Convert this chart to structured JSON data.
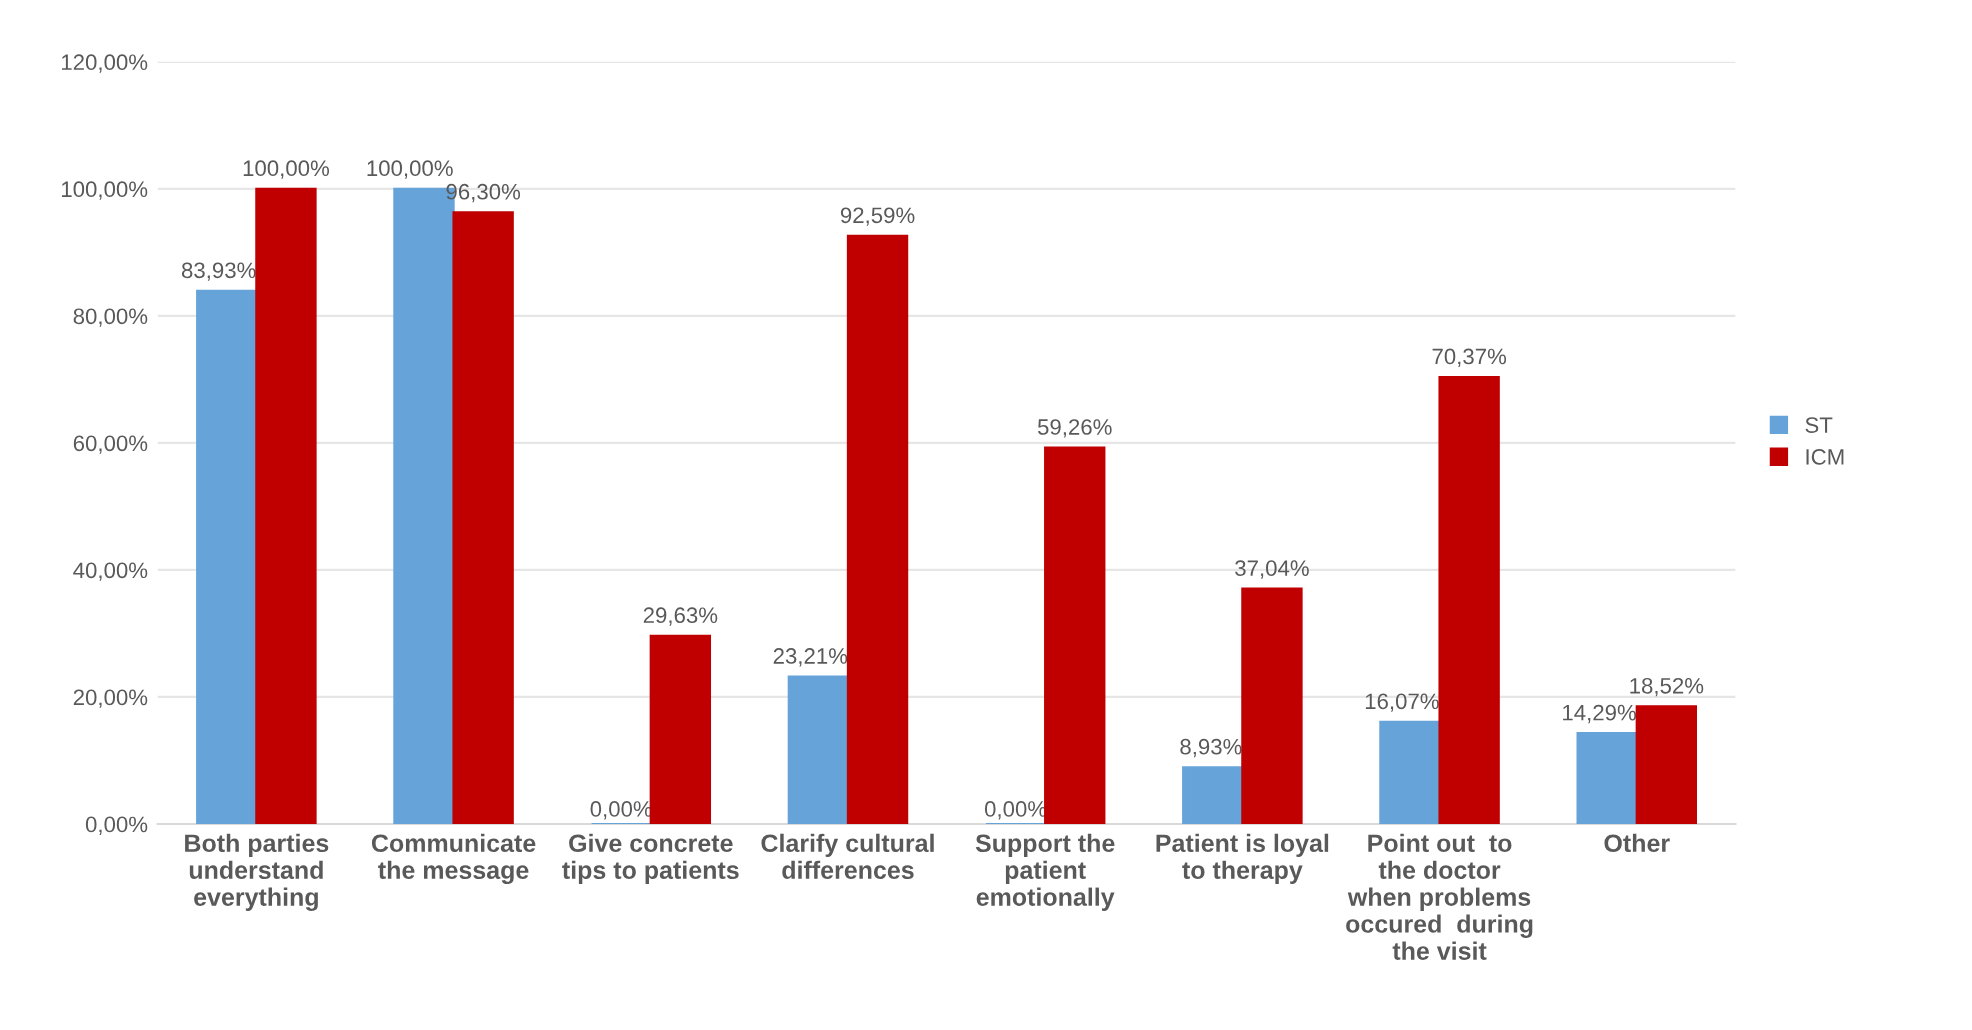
{
  "chart_data": {
    "type": "bar",
    "categories": [
      "Both parties\nunderstand\neverything",
      "Communicate\nthe message",
      "Give concrete\ntips to patients",
      "Clarify cultural\ndifferences",
      "Support the\npatient\nemotionally",
      "Patient is loyal\nto therapy",
      "Point out  to\nthe doctor\nwhen problems\noccured  during\nthe visit",
      "Other"
    ],
    "series": [
      {
        "name": "ST",
        "color": "#66a3d9",
        "values": [
          83.93,
          100,
          0,
          23.21,
          0,
          8.93,
          16.07,
          14.29
        ],
        "value_labels": [
          "83,93%",
          "100,00%",
          "0,00%",
          "23,21%",
          "0,00%",
          "8,93%",
          "16,07%",
          "14,29%"
        ]
      },
      {
        "name": "ICM",
        "color": "#c00000",
        "values": [
          100,
          96.3,
          29.63,
          92.59,
          59.26,
          37.04,
          70.37,
          18.52
        ],
        "value_labels": [
          "100,00%",
          "96,30%",
          "29,63%",
          "92,59%",
          "59,26%",
          "37,04%",
          "70,37%",
          "18,52%"
        ]
      }
    ],
    "ylim": [
      0,
      120
    ],
    "yticks": [
      {
        "value": 0,
        "label": "0,00%"
      },
      {
        "value": 20,
        "label": "20,00%"
      },
      {
        "value": 40,
        "label": "40,00%"
      },
      {
        "value": 60,
        "label": "60,00%"
      },
      {
        "value": 80,
        "label": "80,00%"
      },
      {
        "value": 100,
        "label": "100,00%"
      },
      {
        "value": 120,
        "label": "120,00%"
      }
    ],
    "grid": "y",
    "legend": "right"
  }
}
